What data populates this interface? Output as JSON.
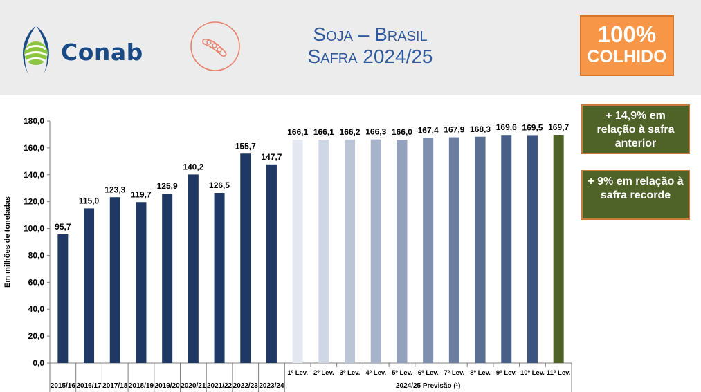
{
  "header": {
    "logo_text": "Conab",
    "title_line1": "Soja – Brasil",
    "title_line2": "Safra 2024/25",
    "badge_percent": "100%",
    "badge_label": "COLHIDO"
  },
  "callouts": [
    {
      "text": "+ 14,9% em relação à safra anterior"
    },
    {
      "text": "+ 9% em relação à safra recorde"
    }
  ],
  "colors": {
    "header_bg": "#ececec",
    "brand_blue": "#1a4a86",
    "title_blue": "#2f5aa0",
    "badge_orange": "#f79646",
    "callout_green": "#4f6228",
    "historic_bar": "#1f3864",
    "final_bar": "#4f6228"
  },
  "chart_data": {
    "type": "bar",
    "ylabel": "Em milhões de toneladas",
    "ylim": [
      0,
      180
    ],
    "yticks": [
      "0,0",
      "20,0",
      "40,0",
      "60,0",
      "80,0",
      "100,0",
      "120,0",
      "140,0",
      "160,0",
      "180,0"
    ],
    "grid": false,
    "group_label": "2024/25 Previsão (¹)",
    "categories": [
      "2015/16",
      "2016/17",
      "2017/18",
      "2018/19",
      "2019/20",
      "2020/21",
      "2021/22",
      "2022/23",
      "2023/24",
      "1º Lev.",
      "2º Lev.",
      "3º Lev.",
      "4º Lev.",
      "5º Lev.",
      "6º Lev.",
      "7º Lev.",
      "8º Lev.",
      "9º Lev.",
      "10º Lev.",
      "11º Lev."
    ],
    "values": [
      95.7,
      115.0,
      123.3,
      119.7,
      125.9,
      140.2,
      126.5,
      155.7,
      147.7,
      166.1,
      166.1,
      166.2,
      166.3,
      166.0,
      167.4,
      167.9,
      168.3,
      169.6,
      169.5,
      169.7
    ],
    "value_labels": [
      "95,7",
      "115,0",
      "123,3",
      "119,7",
      "125,9",
      "140,2",
      "126,5",
      "155,7",
      "147,7",
      "166,1",
      "166,1",
      "166,2",
      "166,3",
      "166,0",
      "167,4",
      "167,9",
      "168,3",
      "169,6",
      "169,5",
      "169,7"
    ],
    "bar_colors": [
      "#1f3864",
      "#1f3864",
      "#1f3864",
      "#1f3864",
      "#1f3864",
      "#1f3864",
      "#1f3864",
      "#1f3864",
      "#1f3864",
      "#e3e7ef",
      "#d0d7e4",
      "#bcc5d6",
      "#a7b3c9",
      "#93a1bc",
      "#7f90ae",
      "#6c7fa1",
      "#5a6f94",
      "#485f88",
      "#3c5480",
      "#4f6228"
    ]
  }
}
